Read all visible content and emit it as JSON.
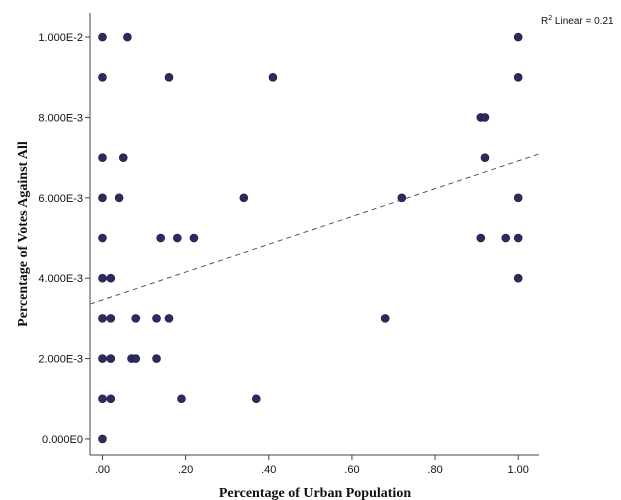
{
  "chart_data": {
    "type": "scatter",
    "xlabel": "Percentage of Urban Population",
    "ylabel": "Percentage of Votes Against All",
    "xlim": [
      -0.03,
      1.05
    ],
    "ylim": [
      -0.0004,
      0.0106
    ],
    "x_ticks": [
      {
        "value": 0.0,
        "label": ".00"
      },
      {
        "value": 0.2,
        "label": ".20"
      },
      {
        "value": 0.4,
        "label": ".40"
      },
      {
        "value": 0.6,
        "label": ".60"
      },
      {
        "value": 0.8,
        "label": ".80"
      },
      {
        "value": 1.0,
        "label": "1.00"
      }
    ],
    "y_ticks": [
      {
        "value": 0.0,
        "label": "0.000E0"
      },
      {
        "value": 0.002,
        "label": "2.000E-3"
      },
      {
        "value": 0.004,
        "label": "4.000E-3"
      },
      {
        "value": 0.006,
        "label": "6.000E-3"
      },
      {
        "value": 0.008,
        "label": "8.000E-3"
      },
      {
        "value": 0.01,
        "label": "1.000E-2"
      }
    ],
    "grid": false,
    "marker_color": "#2b2b60",
    "points": [
      {
        "x": 0.0,
        "y": 0.01
      },
      {
        "x": 0.06,
        "y": 0.01
      },
      {
        "x": 0.0,
        "y": 0.009
      },
      {
        "x": 0.16,
        "y": 0.009
      },
      {
        "x": 0.41,
        "y": 0.009
      },
      {
        "x": 0.0,
        "y": 0.007
      },
      {
        "x": 0.05,
        "y": 0.007
      },
      {
        "x": 0.0,
        "y": 0.006
      },
      {
        "x": 0.04,
        "y": 0.006
      },
      {
        "x": 0.34,
        "y": 0.006
      },
      {
        "x": 0.0,
        "y": 0.005
      },
      {
        "x": 0.14,
        "y": 0.005
      },
      {
        "x": 0.18,
        "y": 0.005
      },
      {
        "x": 0.22,
        "y": 0.005
      },
      {
        "x": 0.0,
        "y": 0.004
      },
      {
        "x": 0.02,
        "y": 0.004
      },
      {
        "x": 0.0,
        "y": 0.003
      },
      {
        "x": 0.02,
        "y": 0.003
      },
      {
        "x": 0.08,
        "y": 0.003
      },
      {
        "x": 0.13,
        "y": 0.003
      },
      {
        "x": 0.16,
        "y": 0.003
      },
      {
        "x": 0.68,
        "y": 0.003
      },
      {
        "x": 0.0,
        "y": 0.002
      },
      {
        "x": 0.02,
        "y": 0.002
      },
      {
        "x": 0.07,
        "y": 0.002
      },
      {
        "x": 0.08,
        "y": 0.002
      },
      {
        "x": 0.13,
        "y": 0.002
      },
      {
        "x": 0.0,
        "y": 0.001
      },
      {
        "x": 0.02,
        "y": 0.001
      },
      {
        "x": 0.19,
        "y": 0.001
      },
      {
        "x": 0.37,
        "y": 0.001
      },
      {
        "x": 0.0,
        "y": 0.0
      },
      {
        "x": 0.72,
        "y": 0.006
      },
      {
        "x": 0.91,
        "y": 0.008
      },
      {
        "x": 0.92,
        "y": 0.008
      },
      {
        "x": 0.92,
        "y": 0.007
      },
      {
        "x": 0.91,
        "y": 0.005
      },
      {
        "x": 0.97,
        "y": 0.005
      },
      {
        "x": 1.0,
        "y": 0.01
      },
      {
        "x": 1.0,
        "y": 0.009
      },
      {
        "x": 1.0,
        "y": 0.006
      },
      {
        "x": 1.0,
        "y": 0.005
      },
      {
        "x": 1.0,
        "y": 0.004
      }
    ],
    "fit_line": {
      "label_prefix": "R",
      "label_exp": "2",
      "label_suffix": " Linear = 0.21",
      "intercept": 0.00346,
      "slope": 0.00346,
      "style": "dashed",
      "color": "#555555"
    }
  }
}
